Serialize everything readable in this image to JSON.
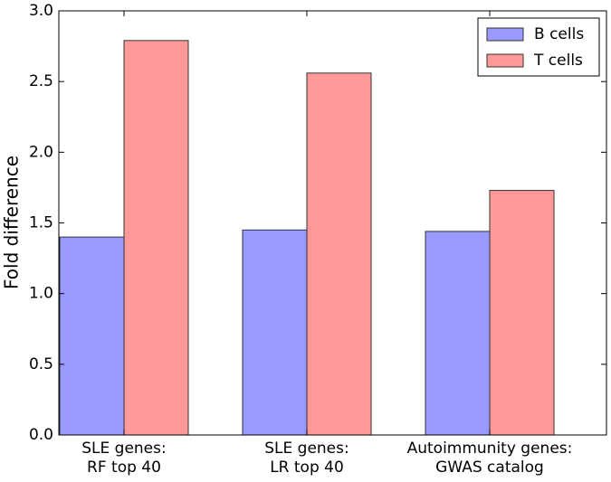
{
  "chart_data": {
    "type": "bar",
    "ylabel": "Fold difference",
    "categories": [
      [
        "SLE genes:",
        "RF top 40"
      ],
      [
        "SLE genes:",
        "LR top 40"
      ],
      [
        "Autoimmunity genes:",
        "GWAS catalog"
      ]
    ],
    "series": [
      {
        "name": "B cells",
        "color": "#9999ff",
        "values": [
          1.4,
          1.45,
          1.44
        ]
      },
      {
        "name": "T cells",
        "color": "#ff9999",
        "values": [
          2.79,
          2.56,
          1.73
        ]
      }
    ],
    "ylim": [
      0,
      3
    ],
    "yticks": [
      {
        "value": 0,
        "label": "0.0"
      },
      {
        "value": 0.5,
        "label": "0.5"
      },
      {
        "value": 1,
        "label": "1.0"
      },
      {
        "value": 1.5,
        "label": "1.5"
      },
      {
        "value": 2,
        "label": "2.0"
      },
      {
        "value": 2.5,
        "label": "2.5"
      },
      {
        "value": 3,
        "label": "3.0"
      }
    ],
    "legend": "upper right"
  }
}
